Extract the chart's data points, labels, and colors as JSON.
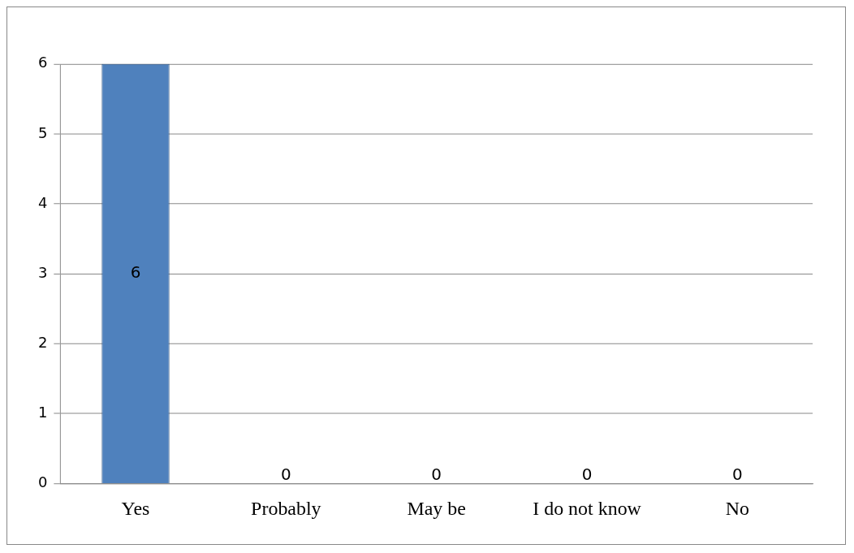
{
  "chart_data": {
    "type": "bar",
    "categories": [
      "Yes",
      "Probably",
      "May be",
      "I do not know",
      "No"
    ],
    "values": [
      6,
      0,
      0,
      0,
      0
    ],
    "color": "#4f81bd",
    "ylim": [
      0,
      6
    ],
    "yticks": [
      0,
      1,
      2,
      3,
      4,
      5,
      6
    ],
    "grid": "y",
    "data_labels": true,
    "legend": false
  }
}
